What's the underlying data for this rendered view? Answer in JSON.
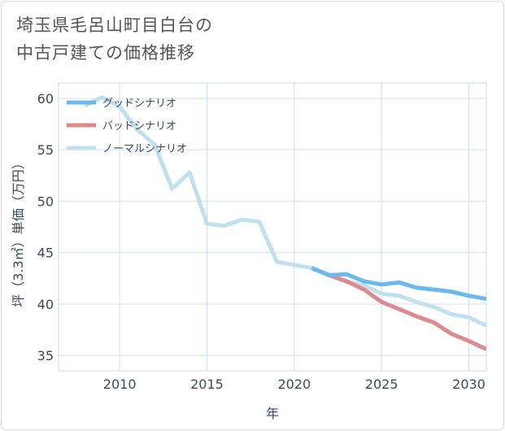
{
  "title_line1": "埼玉県毛呂山町目白台の",
  "title_line2": "中古戸建ての価格推移",
  "chart_data": {
    "type": "line",
    "xlabel": "年",
    "ylabel": "坪（3.3㎡）単価（万円）",
    "xlim": [
      2006.5,
      2031
    ],
    "ylim": [
      33.5,
      61.5
    ],
    "xticks": [
      2010,
      2015,
      2020,
      2025,
      2030
    ],
    "yticks": [
      35,
      40,
      45,
      50,
      55,
      60
    ],
    "grid": true,
    "legend_position": "top-left",
    "series": [
      {
        "name": "グッドシナリオ",
        "color": "#6cb8ec",
        "x": [
          2021,
          2022,
          2023,
          2024,
          2025,
          2026,
          2027,
          2028,
          2029,
          2030,
          2031
        ],
        "y": [
          43.5,
          42.8,
          42.9,
          42.2,
          41.9,
          42.1,
          41.6,
          41.4,
          41.2,
          40.8,
          40.5
        ]
      },
      {
        "name": "バッドシナリオ",
        "color": "#dc8a90",
        "x": [
          2021,
          2022,
          2023,
          2024,
          2025,
          2026,
          2027,
          2028,
          2029,
          2030,
          2031
        ],
        "y": [
          43.5,
          42.8,
          42.2,
          41.4,
          40.2,
          39.5,
          38.8,
          38.2,
          37.1,
          36.4,
          35.6
        ]
      },
      {
        "name": "ノーマルシナリオ",
        "color": "#bfe0ec",
        "x": [
          2008,
          2009,
          2010,
          2011,
          2012,
          2013,
          2014,
          2015,
          2016,
          2017,
          2018,
          2019,
          2020,
          2021,
          2022,
          2023,
          2024,
          2025,
          2026,
          2027,
          2028,
          2029,
          2030,
          2031
        ],
        "y": [
          59.3,
          60.1,
          59.2,
          57.0,
          55.5,
          51.2,
          52.8,
          47.8,
          47.6,
          48.2,
          48.0,
          44.1,
          43.8,
          43.5,
          42.8,
          42.2,
          41.8,
          41.0,
          40.8,
          40.2,
          39.7,
          39.0,
          38.7,
          37.9
        ]
      }
    ]
  }
}
